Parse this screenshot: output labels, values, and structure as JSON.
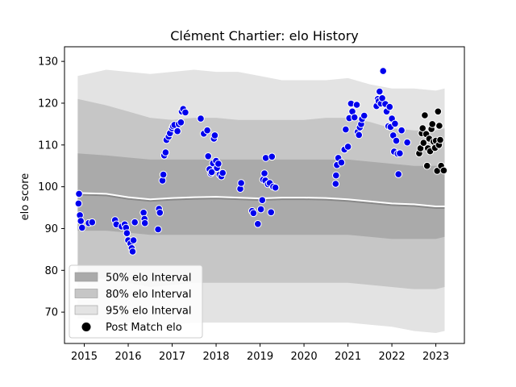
{
  "chart_data": {
    "type": "scatter",
    "title": "Clément Chartier: elo History",
    "xlabel": "",
    "ylabel": "elo score",
    "xlim": [
      2014.55,
      2023.65
    ],
    "ylim": [
      62.5,
      133.5
    ],
    "x_ticks": [
      2015,
      2016,
      2017,
      2018,
      2019,
      2020,
      2021,
      2022,
      2023
    ],
    "y_ticks": [
      70,
      80,
      90,
      100,
      110,
      120,
      130
    ],
    "grid": false,
    "legend_position": "lower-left",
    "legend": [
      {
        "label": "50% elo Interval",
        "color": "#aaaaaa"
      },
      {
        "label": "80% elo Interval",
        "color": "#c6c6c6"
      },
      {
        "label": "95% elo Interval",
        "color": "#e3e3e3"
      },
      {
        "label": "Post Match elo",
        "color": "#000000"
      }
    ],
    "bands": {
      "x": [
        2014.85,
        2015.5,
        2016.0,
        2016.5,
        2017.0,
        2017.5,
        2018.0,
        2018.5,
        2019.0,
        2019.5,
        2020.0,
        2020.5,
        2021.0,
        2021.5,
        2022.0,
        2022.5,
        2023.0,
        2023.2
      ],
      "p95_upper": [
        126.5,
        128.0,
        127.5,
        127.0,
        127.5,
        128.0,
        127.5,
        127.5,
        126.5,
        125.5,
        125.5,
        125.5,
        126.0,
        124.5,
        123.5,
        123.5,
        123.0,
        123.5
      ],
      "p80_upper": [
        121.0,
        119.5,
        118.0,
        116.5,
        116.0,
        116.5,
        116.5,
        116.0,
        116.0,
        116.0,
        116.0,
        116.5,
        116.5,
        115.5,
        114.0,
        113.5,
        113.5,
        114.0
      ],
      "p50_upper": [
        108.0,
        107.5,
        107.0,
        106.5,
        106.5,
        106.5,
        106.5,
        106.5,
        106.5,
        106.5,
        106.5,
        106.5,
        106.5,
        106.0,
        105.5,
        105.0,
        105.0,
        105.0
      ],
      "median": [
        98.5,
        98.3,
        97.5,
        97.0,
        97.3,
        97.5,
        97.6,
        97.4,
        97.2,
        97.4,
        97.4,
        97.3,
        97.0,
        96.5,
        96.0,
        95.8,
        95.3,
        95.3
      ],
      "p50_lower": [
        89.5,
        89.5,
        89.0,
        88.5,
        88.5,
        88.5,
        88.5,
        88.5,
        88.5,
        88.5,
        88.5,
        88.5,
        88.5,
        88.0,
        87.5,
        87.5,
        87.5,
        88.0
      ],
      "p80_lower": [
        78.0,
        78.0,
        77.0,
        76.0,
        76.5,
        77.0,
        77.0,
        77.0,
        77.0,
        77.0,
        77.0,
        77.0,
        77.0,
        76.5,
        76.0,
        75.5,
        75.5,
        76.0
      ],
      "p95_lower": [
        68.5,
        68.0,
        67.5,
        67.0,
        67.0,
        67.5,
        67.5,
        67.5,
        67.5,
        67.5,
        67.5,
        67.5,
        67.5,
        67.0,
        66.5,
        65.5,
        65.0,
        65.5
      ]
    },
    "series": [
      {
        "color": "#0000ee",
        "points": [
          [
            2014.88,
            98.3
          ],
          [
            2014.87,
            96.0
          ],
          [
            2014.9,
            93.2
          ],
          [
            2014.92,
            91.8
          ],
          [
            2014.95,
            90.2
          ],
          [
            2015.1,
            91.3
          ],
          [
            2015.18,
            91.5
          ],
          [
            2015.7,
            92.0
          ],
          [
            2015.73,
            91.0
          ],
          [
            2015.85,
            90.5
          ],
          [
            2015.92,
            91.0
          ],
          [
            2015.95,
            90.2
          ],
          [
            2015.97,
            88.9
          ],
          [
            2016.0,
            87.2
          ],
          [
            2016.05,
            86.4
          ],
          [
            2016.08,
            85.3
          ],
          [
            2016.1,
            84.5
          ],
          [
            2016.12,
            87.2
          ],
          [
            2016.15,
            91.5
          ],
          [
            2016.35,
            93.8
          ],
          [
            2016.37,
            92.3
          ],
          [
            2016.38,
            91.3
          ],
          [
            2016.68,
            89.8
          ],
          [
            2016.7,
            94.7
          ],
          [
            2016.72,
            93.8
          ],
          [
            2016.78,
            101.5
          ],
          [
            2016.8,
            102.9
          ],
          [
            2016.82,
            107.5
          ],
          [
            2016.85,
            108.2
          ],
          [
            2016.87,
            111.2
          ],
          [
            2016.92,
            112.0
          ],
          [
            2016.95,
            112.8
          ],
          [
            2017.0,
            114.0
          ],
          [
            2017.02,
            114.5
          ],
          [
            2017.05,
            114.8
          ],
          [
            2017.12,
            113.3
          ],
          [
            2017.15,
            115.0
          ],
          [
            2017.2,
            115.4
          ],
          [
            2017.22,
            118.0
          ],
          [
            2017.25,
            118.6
          ],
          [
            2017.3,
            117.8
          ],
          [
            2017.65,
            116.3
          ],
          [
            2017.72,
            112.7
          ],
          [
            2017.8,
            113.5
          ],
          [
            2017.82,
            107.3
          ],
          [
            2017.85,
            104.2
          ],
          [
            2017.88,
            103.2
          ],
          [
            2017.9,
            103.5
          ],
          [
            2017.93,
            105.6
          ],
          [
            2017.95,
            111.5
          ],
          [
            2017.97,
            112.3
          ],
          [
            2018.0,
            106.2
          ],
          [
            2018.02,
            104.5
          ],
          [
            2018.05,
            105.5
          ],
          [
            2018.08,
            102.9
          ],
          [
            2018.12,
            102.5
          ],
          [
            2018.15,
            103.3
          ],
          [
            2018.55,
            99.5
          ],
          [
            2018.57,
            100.9
          ],
          [
            2018.82,
            94.2
          ],
          [
            2018.85,
            93.7
          ],
          [
            2018.95,
            91.1
          ],
          [
            2019.02,
            94.6
          ],
          [
            2019.05,
            96.8
          ],
          [
            2019.07,
            101.7
          ],
          [
            2019.1,
            103.2
          ],
          [
            2019.12,
            101.5
          ],
          [
            2019.13,
            106.9
          ],
          [
            2019.18,
            100.6
          ],
          [
            2019.22,
            100.9
          ],
          [
            2019.25,
            93.9
          ],
          [
            2019.27,
            107.2
          ],
          [
            2019.3,
            100.0
          ],
          [
            2019.35,
            99.8
          ],
          [
            2020.72,
            100.7
          ],
          [
            2020.73,
            102.7
          ],
          [
            2020.75,
            105.2
          ],
          [
            2020.78,
            106.9
          ],
          [
            2020.85,
            105.8
          ],
          [
            2020.92,
            108.9
          ],
          [
            2020.95,
            113.7
          ],
          [
            2021.0,
            109.6
          ],
          [
            2021.03,
            116.4
          ],
          [
            2021.07,
            119.9
          ],
          [
            2021.1,
            118.0
          ],
          [
            2021.15,
            116.6
          ],
          [
            2021.2,
            119.6
          ],
          [
            2021.22,
            113.1
          ],
          [
            2021.25,
            112.4
          ],
          [
            2021.27,
            114.2
          ],
          [
            2021.3,
            115.0
          ],
          [
            2021.32,
            116.2
          ],
          [
            2021.37,
            117.0
          ],
          [
            2021.65,
            119.3
          ],
          [
            2021.68,
            121.0
          ],
          [
            2021.7,
            120.5
          ],
          [
            2021.72,
            122.8
          ],
          [
            2021.75,
            119.9
          ],
          [
            2021.78,
            121.2
          ],
          [
            2021.8,
            127.7
          ],
          [
            2021.85,
            119.8
          ],
          [
            2021.88,
            118.0
          ],
          [
            2021.92,
            114.5
          ],
          [
            2021.95,
            119.1
          ],
          [
            2021.97,
            114.3
          ],
          [
            2022.0,
            116.3
          ],
          [
            2022.03,
            112.3
          ],
          [
            2022.05,
            108.4
          ],
          [
            2022.07,
            115.1
          ],
          [
            2022.1,
            111.0
          ],
          [
            2022.13,
            107.9
          ],
          [
            2022.15,
            103.0
          ],
          [
            2022.18,
            108.0
          ],
          [
            2022.22,
            113.5
          ],
          [
            2022.35,
            110.6
          ]
        ]
      },
      {
        "name": "Post Match elo",
        "color": "#000000",
        "points": [
          [
            2022.62,
            108.0
          ],
          [
            2022.65,
            109.2
          ],
          [
            2022.68,
            112.8
          ],
          [
            2022.7,
            114.0
          ],
          [
            2022.72,
            110.5
          ],
          [
            2022.75,
            117.1
          ],
          [
            2022.78,
            112.6
          ],
          [
            2022.8,
            105.0
          ],
          [
            2022.82,
            109.2
          ],
          [
            2022.85,
            111.5
          ],
          [
            2022.87,
            108.5
          ],
          [
            2022.9,
            113.8
          ],
          [
            2022.92,
            115.0
          ],
          [
            2022.95,
            110.8
          ],
          [
            2022.98,
            109.3
          ],
          [
            2023.0,
            111.0
          ],
          [
            2023.03,
            103.8
          ],
          [
            2023.05,
            118.0
          ],
          [
            2023.07,
            110.0
          ],
          [
            2023.08,
            114.6
          ],
          [
            2023.1,
            111.2
          ],
          [
            2023.12,
            105.0
          ],
          [
            2023.18,
            103.9
          ]
        ]
      }
    ]
  }
}
